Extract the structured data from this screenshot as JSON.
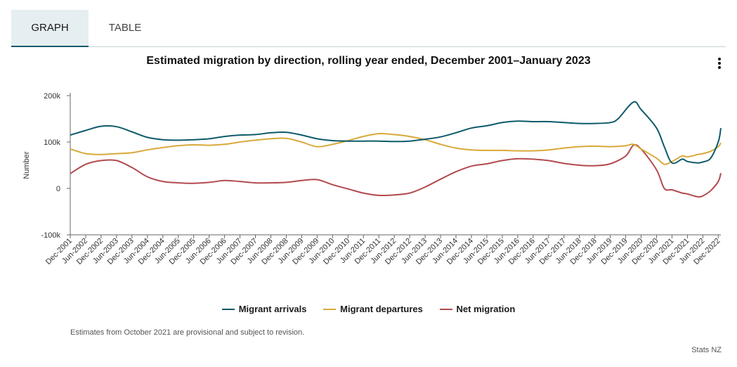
{
  "tabs": [
    {
      "label": "GRAPH",
      "active": true
    },
    {
      "label": "TABLE",
      "active": false
    }
  ],
  "menu_icon": "kebab-vertical-icon",
  "chart_data": {
    "type": "line",
    "title": "Estimated migration by direction, rolling year ended, December 2001–January 2023",
    "xlabel": "",
    "ylabel": "Number",
    "ylim": [
      -100000,
      200000
    ],
    "yticks": [
      {
        "value": 200000,
        "label": "200k"
      },
      {
        "value": 100000,
        "label": "100k"
      },
      {
        "value": 0,
        "label": "0"
      },
      {
        "value": -100000,
        "label": "-100k"
      }
    ],
    "x_tick_labels": [
      "Dec-2001",
      "Jun-2002",
      "Dec-2002",
      "Jun-2003",
      "Dec-2003",
      "Jun-2004",
      "Dec-2004",
      "Jun-2005",
      "Dec-2005",
      "Jun-2006",
      "Dec-2006",
      "Jun-2007",
      "Dec-2007",
      "Jun-2008",
      "Dec-2008",
      "Jun-2009",
      "Dec-2009",
      "Jun-2010",
      "Dec-2010",
      "Jun-2011",
      "Dec-2011",
      "Jun-2012",
      "Dec-2012",
      "Jun-2013",
      "Dec-2013",
      "Jun-2014",
      "Dec-2014",
      "Jun-2015",
      "Dec-2015",
      "Jun-2016",
      "Dec-2016",
      "Jun-2017",
      "Dec-2017",
      "Jun-2018",
      "Dec-2018",
      "Jun-2019",
      "Dec-2019",
      "Jun-2020",
      "Dec-2020",
      "Jun-2021",
      "Dec-2021",
      "Jun-2022",
      "Dec-2022"
    ],
    "x_start": "Dec-2001",
    "x_end": "Jan-2023",
    "grid": false,
    "legend_position": "bottom",
    "series": [
      {
        "name": "Migrant arrivals",
        "color": "#0e5a6b",
        "points": [
          [
            "Dec-2001",
            115000
          ],
          [
            "Jun-2002",
            125000
          ],
          [
            "Dec-2002",
            134000
          ],
          [
            "Jun-2003",
            133000
          ],
          [
            "Dec-2003",
            122000
          ],
          [
            "Jun-2004",
            110000
          ],
          [
            "Dec-2004",
            105000
          ],
          [
            "Jun-2005",
            104000
          ],
          [
            "Dec-2005",
            105000
          ],
          [
            "Jun-2006",
            107000
          ],
          [
            "Dec-2006",
            112000
          ],
          [
            "Jun-2007",
            115000
          ],
          [
            "Dec-2007",
            116000
          ],
          [
            "Jun-2008",
            120000
          ],
          [
            "Dec-2008",
            121000
          ],
          [
            "Jun-2009",
            115000
          ],
          [
            "Dec-2009",
            107000
          ],
          [
            "Jun-2010",
            103000
          ],
          [
            "Dec-2010",
            102000
          ],
          [
            "Jun-2011",
            102000
          ],
          [
            "Dec-2011",
            102000
          ],
          [
            "Jun-2012",
            101000
          ],
          [
            "Dec-2012",
            102000
          ],
          [
            "Jun-2013",
            106000
          ],
          [
            "Dec-2013",
            111000
          ],
          [
            "Jun-2014",
            120000
          ],
          [
            "Dec-2014",
            130000
          ],
          [
            "Jun-2015",
            135000
          ],
          [
            "Dec-2015",
            142000
          ],
          [
            "Jun-2016",
            145000
          ],
          [
            "Dec-2016",
            144000
          ],
          [
            "Jun-2017",
            144000
          ],
          [
            "Dec-2017",
            142000
          ],
          [
            "Jun-2018",
            140000
          ],
          [
            "Dec-2018",
            140000
          ],
          [
            "Jun-2019",
            142000
          ],
          [
            "Sep-2019",
            150000
          ],
          [
            "Mar-2020",
            186000
          ],
          [
            "Jun-2020",
            170000
          ],
          [
            "Dec-2020",
            130000
          ],
          [
            "Mar-2021",
            90000
          ],
          [
            "Jun-2021",
            55000
          ],
          [
            "Oct-2021",
            63000
          ],
          [
            "Dec-2021",
            58000
          ],
          [
            "Apr-2022",
            55000
          ],
          [
            "Jun-2022",
            57000
          ],
          [
            "Sep-2022",
            65000
          ],
          [
            "Dec-2022",
            100000
          ],
          [
            "Jan-2023",
            130000
          ]
        ]
      },
      {
        "name": "Migrant departures",
        "color": "#d9a93a",
        "points": [
          [
            "Dec-2001",
            85000
          ],
          [
            "Jun-2002",
            75000
          ],
          [
            "Dec-2002",
            73000
          ],
          [
            "Jun-2003",
            75000
          ],
          [
            "Dec-2003",
            77000
          ],
          [
            "Jun-2004",
            83000
          ],
          [
            "Dec-2004",
            88000
          ],
          [
            "Jun-2005",
            92000
          ],
          [
            "Dec-2005",
            94000
          ],
          [
            "Jun-2006",
            93000
          ],
          [
            "Dec-2006",
            95000
          ],
          [
            "Jun-2007",
            100000
          ],
          [
            "Dec-2007",
            104000
          ],
          [
            "Jun-2008",
            107000
          ],
          [
            "Dec-2008",
            108000
          ],
          [
            "Jun-2009",
            100000
          ],
          [
            "Dec-2009",
            90000
          ],
          [
            "Jun-2010",
            95000
          ],
          [
            "Dec-2010",
            103000
          ],
          [
            "Jun-2011",
            112000
          ],
          [
            "Dec-2011",
            118000
          ],
          [
            "Jun-2012",
            116000
          ],
          [
            "Dec-2012",
            112000
          ],
          [
            "Jun-2013",
            105000
          ],
          [
            "Dec-2013",
            95000
          ],
          [
            "Jun-2014",
            87000
          ],
          [
            "Dec-2014",
            83000
          ],
          [
            "Jun-2015",
            82000
          ],
          [
            "Dec-2015",
            82000
          ],
          [
            "Jun-2016",
            81000
          ],
          [
            "Dec-2016",
            81000
          ],
          [
            "Jun-2017",
            83000
          ],
          [
            "Dec-2017",
            87000
          ],
          [
            "Jun-2018",
            90000
          ],
          [
            "Dec-2018",
            91000
          ],
          [
            "Jun-2019",
            90000
          ],
          [
            "Dec-2019",
            92000
          ],
          [
            "Mar-2020",
            95000
          ],
          [
            "Jun-2020",
            85000
          ],
          [
            "Dec-2020",
            65000
          ],
          [
            "Mar-2021",
            52000
          ],
          [
            "Jun-2021",
            58000
          ],
          [
            "Oct-2021",
            70000
          ],
          [
            "Dec-2021",
            68000
          ],
          [
            "Apr-2022",
            73000
          ],
          [
            "Jun-2022",
            75000
          ],
          [
            "Sep-2022",
            80000
          ],
          [
            "Dec-2022",
            90000
          ],
          [
            "Jan-2023",
            98000
          ]
        ]
      },
      {
        "name": "Net migration",
        "color": "#b34a4f",
        "points": [
          [
            "Dec-2001",
            32000
          ],
          [
            "Jun-2002",
            52000
          ],
          [
            "Dec-2002",
            60000
          ],
          [
            "Jun-2003",
            60000
          ],
          [
            "Dec-2003",
            45000
          ],
          [
            "Jun-2004",
            25000
          ],
          [
            "Dec-2004",
            15000
          ],
          [
            "Jun-2005",
            12000
          ],
          [
            "Dec-2005",
            11000
          ],
          [
            "Jun-2006",
            13000
          ],
          [
            "Dec-2006",
            17000
          ],
          [
            "Jun-2007",
            15000
          ],
          [
            "Dec-2007",
            12000
          ],
          [
            "Jun-2008",
            12000
          ],
          [
            "Dec-2008",
            13000
          ],
          [
            "Jun-2009",
            17000
          ],
          [
            "Dec-2009",
            19000
          ],
          [
            "Jun-2010",
            8000
          ],
          [
            "Dec-2010",
            -1000
          ],
          [
            "Jun-2011",
            -10000
          ],
          [
            "Dec-2011",
            -15000
          ],
          [
            "Jun-2012",
            -14000
          ],
          [
            "Dec-2012",
            -10000
          ],
          [
            "Jun-2013",
            3000
          ],
          [
            "Dec-2013",
            20000
          ],
          [
            "Jun-2014",
            36000
          ],
          [
            "Dec-2014",
            48000
          ],
          [
            "Jun-2015",
            53000
          ],
          [
            "Dec-2015",
            60000
          ],
          [
            "Jun-2016",
            64000
          ],
          [
            "Dec-2016",
            63000
          ],
          [
            "Jun-2017",
            60000
          ],
          [
            "Dec-2017",
            54000
          ],
          [
            "Jun-2018",
            50000
          ],
          [
            "Dec-2018",
            49000
          ],
          [
            "Jun-2019",
            53000
          ],
          [
            "Dec-2019",
            70000
          ],
          [
            "Mar-2020",
            93000
          ],
          [
            "Jun-2020",
            85000
          ],
          [
            "Dec-2020",
            40000
          ],
          [
            "Mar-2021",
            0
          ],
          [
            "Jun-2021",
            -3000
          ],
          [
            "Oct-2021",
            -10000
          ],
          [
            "Dec-2021",
            -12000
          ],
          [
            "Apr-2022",
            -18000
          ],
          [
            "Jun-2022",
            -16000
          ],
          [
            "Sep-2022",
            -5000
          ],
          [
            "Dec-2022",
            15000
          ],
          [
            "Jan-2023",
            33000
          ]
        ]
      }
    ]
  },
  "note": "Estimates from October 2021 are provisional and subject to revision.",
  "credit": "Stats NZ"
}
